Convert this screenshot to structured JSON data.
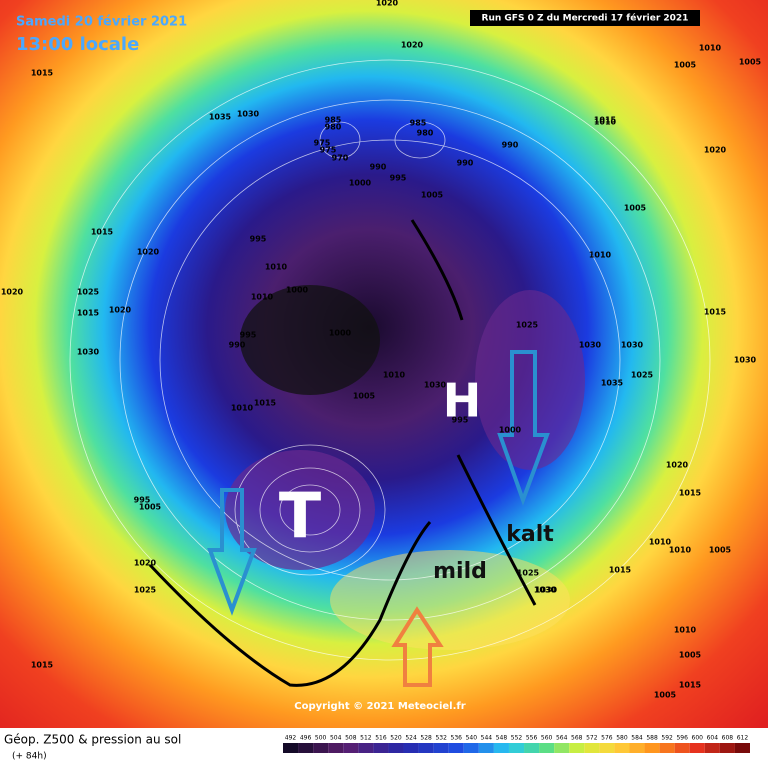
{
  "header": {
    "title": "Samedi 20 février 2021",
    "time": "13:00 locale",
    "run": "Run GFS 0 Z du Mercredi 17 février 2021"
  },
  "annotations": {
    "high": "H",
    "low": "T",
    "cold": "kalt",
    "warm": "mild"
  },
  "footer": {
    "product": "Géop. Z500 & pression au sol",
    "lead": "(+ 84h)",
    "copyright": "Copyright © 2021 Meteociel.fr"
  },
  "legend": {
    "ticks": [
      492,
      496,
      500,
      504,
      508,
      512,
      516,
      520,
      524,
      528,
      532,
      536,
      540,
      544,
      548,
      552,
      556,
      560,
      564,
      568,
      572,
      576,
      580,
      584,
      588,
      592,
      596,
      600,
      604,
      608,
      612
    ]
  },
  "isobar_labels": [
    1020,
    1020,
    1015,
    1035,
    1030,
    985,
    980,
    985,
    975,
    980,
    975,
    970,
    990,
    990,
    990,
    995,
    1000,
    1005,
    1015,
    1010,
    1000,
    1020,
    995,
    1015,
    1025,
    1020,
    1030,
    1010,
    995,
    1010,
    990,
    1000,
    1015,
    1005,
    1010,
    1030,
    995,
    1000,
    995,
    1005,
    1020,
    1025,
    1015,
    1025,
    1030,
    1030,
    1035,
    1025,
    1020,
    1015,
    1010,
    1015,
    1010,
    1005,
    1030,
    1025,
    1030,
    1015,
    1020,
    1005,
    1010,
    1005,
    1010,
    1005,
    1005,
    1015,
    1015,
    1020,
    1030,
    1010,
    1010,
    1005
  ]
}
